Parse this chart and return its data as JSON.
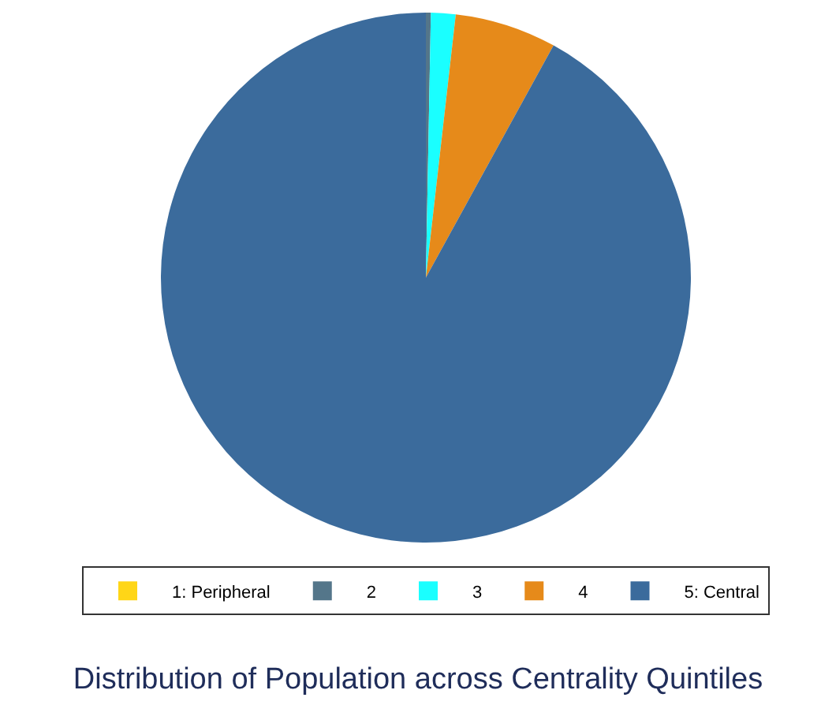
{
  "chart_data": {
    "type": "pie",
    "title": "Distribution of Population across Centrality Quintiles",
    "categories": [
      "1: Peripheral",
      "2",
      "3",
      "4",
      "5: Central"
    ],
    "values": [
      0,
      0.3,
      1.5,
      6.2,
      92.0
    ],
    "colors": [
      "#ffd617",
      "#54768a",
      "#1affff",
      "#e68a1a",
      "#3b6b9c"
    ],
    "legend": "bottom"
  }
}
